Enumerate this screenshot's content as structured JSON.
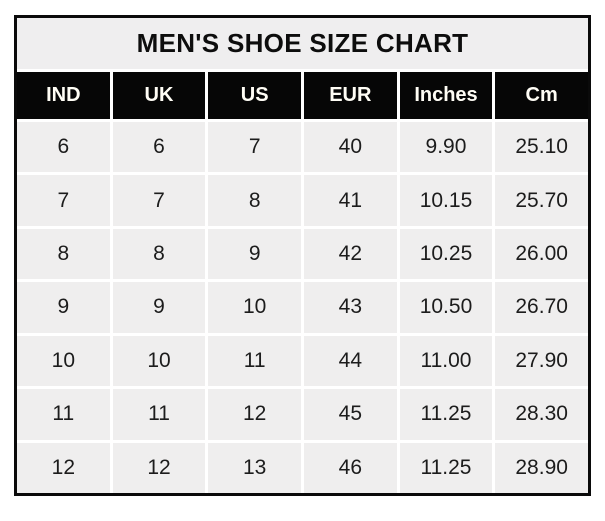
{
  "page_title": "MEN'S SHOE SIZE CHART",
  "colors": {
    "page_bg": "#ffffff",
    "table_border": "#0a0a0a",
    "title_bg": "#efeeef",
    "title_text": "#0d0d0d",
    "header_bg": "#060606",
    "header_text": "#fffdf5",
    "cell_bg": "#efeeee",
    "cell_text": "#1c1c1c",
    "separator": "#ffffff"
  },
  "chart_data": {
    "type": "table",
    "title": "MEN'S SHOE SIZE CHART",
    "columns": [
      "IND",
      "UK",
      "US",
      "EUR",
      "Inches",
      "Cm"
    ],
    "rows": [
      [
        "6",
        "6",
        "7",
        "40",
        "9.90",
        "25.10"
      ],
      [
        "7",
        "7",
        "8",
        "41",
        "10.15",
        "25.70"
      ],
      [
        "8",
        "8",
        "9",
        "42",
        "10.25",
        "26.00"
      ],
      [
        "9",
        "9",
        "10",
        "43",
        "10.50",
        "26.70"
      ],
      [
        "10",
        "10",
        "11",
        "44",
        "11.00",
        "27.90"
      ],
      [
        "11",
        "11",
        "12",
        "45",
        "11.25",
        "28.30"
      ],
      [
        "12",
        "12",
        "13",
        "46",
        "11.25",
        "28.90"
      ]
    ]
  }
}
